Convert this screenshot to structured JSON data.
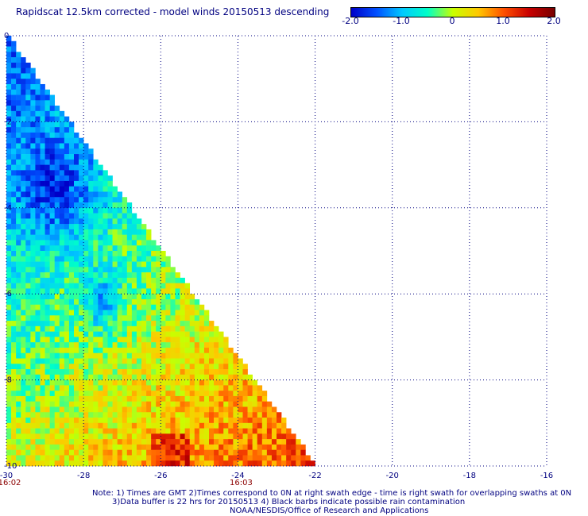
{
  "chart_data": {
    "type": "heatmap",
    "title": "Rapidscat 12.5km corrected - model winds 20150513 descending",
    "xlim": [
      -30,
      -16
    ],
    "ylim": [
      -10,
      0
    ],
    "x_ticks": [
      "-30",
      "-28",
      "-26",
      "-24",
      "-22",
      "-20",
      "-18",
      "-16"
    ],
    "y_ticks": [
      "0",
      "-2",
      "-4",
      "-6",
      "-8",
      "-10"
    ],
    "grid": true,
    "colorbar": {
      "range": [
        -2.0,
        2.0
      ],
      "labels": [
        "-2.0",
        "-1.0",
        "0",
        "1.0",
        "2.0"
      ],
      "colors": [
        "#0000c8",
        "#0050ff",
        "#00c8ff",
        "#00ffc8",
        "#c8ff00",
        "#ffc800",
        "#ff5000",
        "#c80000",
        "#780000"
      ]
    },
    "time_labels": [
      {
        "x": -30,
        "text": "16:02"
      },
      {
        "x": -24,
        "text": "16:03"
      }
    ],
    "swath_region_note": "triangular swath, left edge x=-30, lower-right edge from (-30,0) to (-22,-10)",
    "cells": {
      "dx": 0.125,
      "dy": 0.125
    }
  },
  "notes": {
    "line1": "Note: 1) Times are GMT 2)Times correspond to 0N at right swath edge - time is right swath for overlapping swaths at 0N",
    "line2": "3)Data buffer is 22 hrs for 20150513 4) Black barbs indicate possible rain contamination",
    "line3": "NOAA/NESDIS/Office of Research and Applications"
  }
}
